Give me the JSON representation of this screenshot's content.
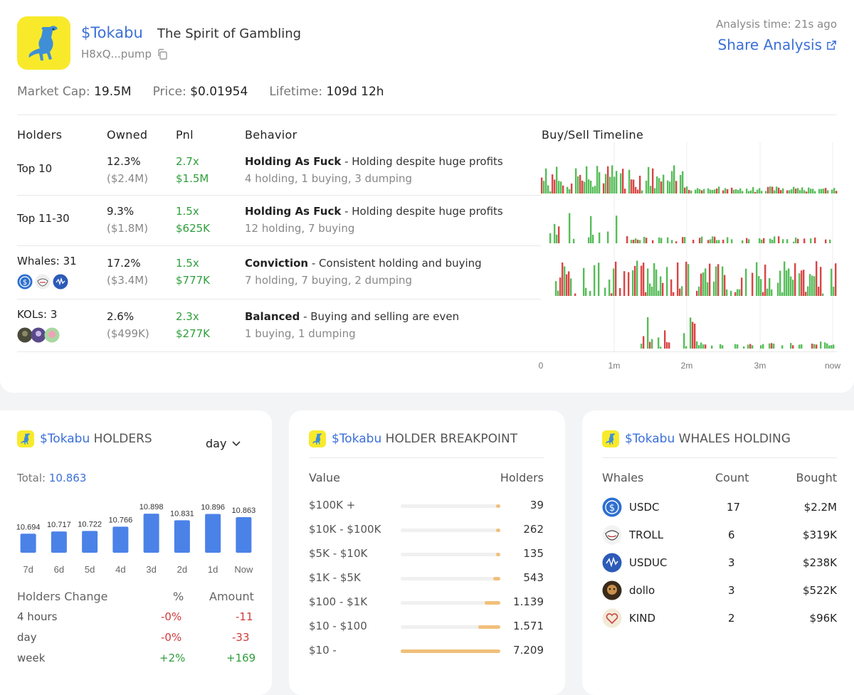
{
  "header": {
    "token_name": "$Tokabu",
    "token_subtitle": "The Spirit of Gambling",
    "address": "H8xQ...pump",
    "analysis_time": "Analysis time: 21s ago",
    "share_label": "Share Analysis"
  },
  "stats": {
    "market_cap_label": "Market Cap:",
    "market_cap": "19.5M",
    "price_label": "Price:",
    "price": "$0.01954",
    "lifetime_label": "Lifetime:",
    "lifetime": "109d 12h"
  },
  "table": {
    "headers": [
      "Holders",
      "Owned",
      "Pnl",
      "Behavior",
      "Buy/Sell Timeline"
    ],
    "rows": [
      {
        "holders": "Top 10",
        "owned_pct": "12.3%",
        "owned_usd": "($2.4M)",
        "pnl_x": "2.7x",
        "pnl_usd": "$1.5M",
        "behavior_title": "Holding As Fuck",
        "behavior_desc": " - Holding despite huge profits",
        "behavior_counts": "4 holding, 1 buying, 3 dumping"
      },
      {
        "holders": "Top 11-30",
        "owned_pct": "9.3%",
        "owned_usd": "($1.8M)",
        "pnl_x": "1.5x",
        "pnl_usd": "$625K",
        "behavior_title": "Holding As Fuck",
        "behavior_desc": " - Holding despite huge profits",
        "behavior_counts": "12 holding, 7 buying"
      },
      {
        "holders": "Whales: 31",
        "owned_pct": "17.2%",
        "owned_usd": "($3.4M)",
        "pnl_x": "1.5x",
        "pnl_usd": "$777K",
        "behavior_title": "Conviction",
        "behavior_desc": " - Consistent holding and buying",
        "behavior_counts": "7 holding, 7 buying, 2 dumping"
      },
      {
        "holders": "KOLs: 3",
        "owned_pct": "2.6%",
        "owned_usd": "($499K)",
        "pnl_x": "2.3x",
        "pnl_usd": "$277K",
        "behavior_title": "Balanced",
        "behavior_desc": " - Buying and selling are even",
        "behavior_counts": "1 buying, 1 dumping"
      }
    ],
    "timeline_ticks": [
      "0",
      "1m",
      "2m",
      "3m",
      "now"
    ]
  },
  "holders_card": {
    "token": "$Tokabu",
    "title": "HOLDERS",
    "period": "day",
    "total_label": "Total:",
    "total": "10.863",
    "change_headers": [
      "Holders Change",
      "%",
      "Amount"
    ],
    "changes": [
      {
        "label": "4 hours",
        "pct": "-0%",
        "amount": "-11"
      },
      {
        "label": "day",
        "pct": "-0%",
        "amount": "-33"
      },
      {
        "label": "week",
        "pct": "+2%",
        "amount": "+169"
      }
    ]
  },
  "breakpoint_card": {
    "token": "$Tokabu",
    "title": "HOLDER BREAKPOINT",
    "col_value": "Value",
    "col_holders": "Holders",
    "rows": [
      {
        "label": "$100K +",
        "count": "39",
        "share": 0.005
      },
      {
        "label": "$10K - $100K",
        "count": "262",
        "share": 0.036
      },
      {
        "label": "$5K - $10K",
        "count": "135",
        "share": 0.019
      },
      {
        "label": "$1K - $5K",
        "count": "543",
        "share": 0.075
      },
      {
        "label": "$100 - $1K",
        "count": "1.139",
        "share": 0.158
      },
      {
        "label": "$10 - $100",
        "count": "1.571",
        "share": 0.218
      },
      {
        "label": "$10 -",
        "count": "7.209",
        "share": 1.0
      }
    ]
  },
  "whales_card": {
    "token": "$Tokabu",
    "title": "WHALES HOLDING",
    "headers": [
      "Whales",
      "Count",
      "Bought"
    ],
    "rows": [
      {
        "name": "USDC",
        "count": "17",
        "bought": "$2.2M",
        "icon": "usdc-icon"
      },
      {
        "name": "TROLL",
        "count": "6",
        "bought": "$319K",
        "icon": "troll-icon"
      },
      {
        "name": "USDUC",
        "count": "3",
        "bought": "$238K",
        "icon": "usduc-icon"
      },
      {
        "name": "dollo",
        "count": "3",
        "bought": "$522K",
        "icon": "dollo-icon"
      },
      {
        "name": "KIND",
        "count": "2",
        "bought": "$96K",
        "icon": "kind-icon"
      }
    ]
  },
  "chart_data": {
    "type": "bar",
    "categories": [
      "7d",
      "6d",
      "5d",
      "4d",
      "3d",
      "2d",
      "1d",
      "Now"
    ],
    "values": [
      10694,
      10717,
      10722,
      10766,
      10898,
      10831,
      10896,
      10863
    ],
    "labels": [
      "10.694",
      "10.717",
      "10.722",
      "10.766",
      "10.898",
      "10.831",
      "10.896",
      "10.863"
    ],
    "title": "",
    "color": "#4b82e8"
  },
  "colors": {
    "accent": "#3b6fd8",
    "buy": "#57bd5a",
    "sell": "#d94545",
    "bar": "#4b82e8",
    "breakpoint": "#f0c07a"
  }
}
